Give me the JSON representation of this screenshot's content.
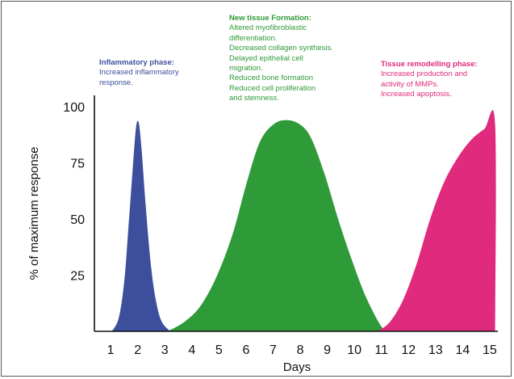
{
  "chart_data": {
    "type": "area",
    "xlabel": "Days",
    "ylabel": "% of maximum response",
    "xlim": [
      0.4,
      15.3
    ],
    "ylim": [
      0,
      105
    ],
    "x_ticks": [
      1,
      2,
      3,
      4,
      5,
      6,
      7,
      8,
      9,
      10,
      11,
      12,
      13,
      14,
      15
    ],
    "y_ticks": [
      25,
      50,
      75,
      100
    ],
    "series": [
      {
        "color": "#3d4f9c",
        "points": [
          [
            1.05,
            0
          ],
          [
            1.3,
            6
          ],
          [
            1.5,
            22
          ],
          [
            1.65,
            45
          ],
          [
            1.8,
            70
          ],
          [
            1.9,
            86
          ],
          [
            1.97,
            93
          ],
          [
            2.05,
            92
          ],
          [
            2.15,
            80
          ],
          [
            2.3,
            55
          ],
          [
            2.5,
            28
          ],
          [
            2.7,
            12
          ],
          [
            2.9,
            4
          ],
          [
            3.2,
            0
          ]
        ]
      },
      {
        "color": "#2f9a38",
        "points": [
          [
            3.1,
            0
          ],
          [
            3.7,
            4
          ],
          [
            4.3,
            11
          ],
          [
            4.9,
            24
          ],
          [
            5.5,
            43
          ],
          [
            6.0,
            65
          ],
          [
            6.5,
            84
          ],
          [
            7.0,
            92
          ],
          [
            7.5,
            94
          ],
          [
            8.0,
            92
          ],
          [
            8.4,
            86
          ],
          [
            8.9,
            70
          ],
          [
            9.4,
            50
          ],
          [
            9.9,
            32
          ],
          [
            10.4,
            16
          ],
          [
            10.9,
            4
          ],
          [
            11.15,
            0
          ]
        ]
      },
      {
        "color": "#e02a7d",
        "points": [
          [
            10.85,
            0
          ],
          [
            11.3,
            4
          ],
          [
            11.8,
            14
          ],
          [
            12.3,
            30
          ],
          [
            12.8,
            50
          ],
          [
            13.3,
            66
          ],
          [
            13.8,
            77
          ],
          [
            14.3,
            85
          ],
          [
            14.8,
            90
          ],
          [
            15.2,
            92
          ],
          [
            15.2,
            0
          ]
        ]
      }
    ],
    "annotations": [
      {
        "id": "inflammatory",
        "color": "#3d4f9c",
        "title": "Inflammatory phase:",
        "lines": [
          "Increased inflammatory",
          "response."
        ]
      },
      {
        "id": "tissue",
        "color": "#2f9a38",
        "title": "New tissue Formation:",
        "lines": [
          "Altered myofibroblastic",
          "differentiation.",
          "Decreased collagen synthesis.",
          "Delayed epithelial cell",
          "migration.",
          "Reduced bone formation",
          "Reduced cell proliferation",
          "and stemness."
        ]
      },
      {
        "id": "remodel",
        "color": "#e02a7d",
        "title": "Tissue remodelling phase:",
        "lines": [
          "Increased production and",
          "activity of MMPs.",
          "Increased apoptosis."
        ]
      }
    ]
  }
}
